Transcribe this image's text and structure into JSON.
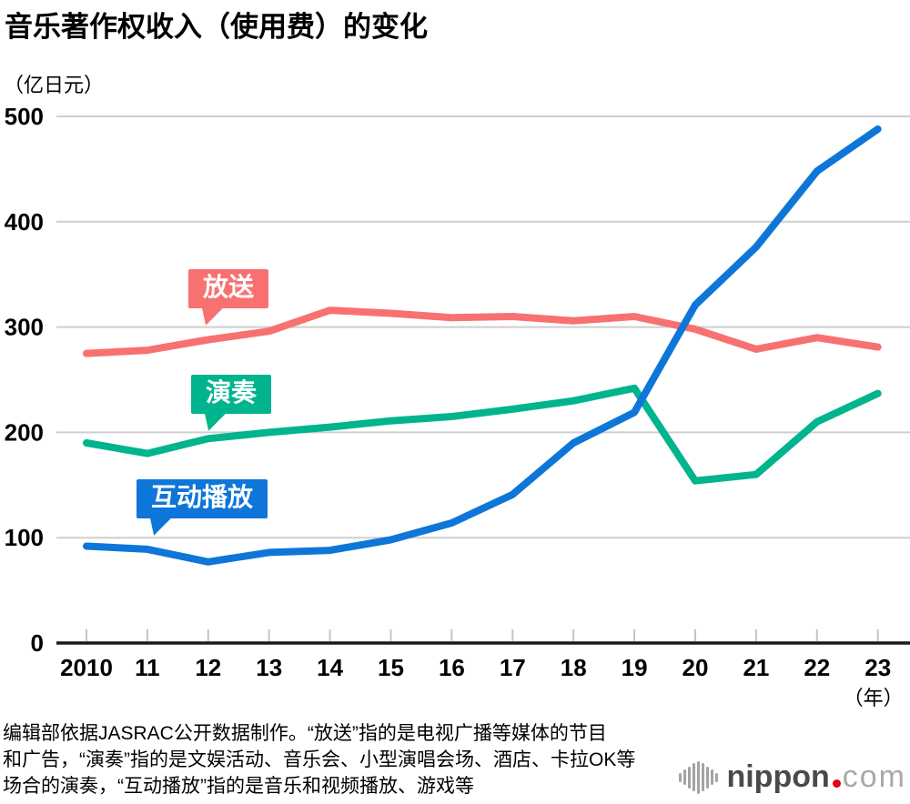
{
  "title": "音乐著作权收入（使用费）的变化",
  "unit_label": "（亿日元）",
  "chart_data": {
    "type": "line",
    "title": "音乐著作权收入（使用费）的变化",
    "ylabel": "（亿日元）",
    "x_suffix_label": "（年）",
    "ylim": [
      0,
      500
    ],
    "y_ticks": [
      0,
      100,
      200,
      300,
      400,
      500
    ],
    "grid": true,
    "legend_position": "callout-labels-on-lines",
    "categories": [
      "2010",
      "11",
      "12",
      "13",
      "14",
      "15",
      "16",
      "17",
      "18",
      "19",
      "20",
      "21",
      "22",
      "23"
    ],
    "series": [
      {
        "key": "broadcast",
        "name": "放送",
        "color": "#f87171",
        "values": [
          275,
          278,
          288,
          296,
          316,
          313,
          309,
          310,
          306,
          310,
          298,
          279,
          290,
          281
        ]
      },
      {
        "key": "performance",
        "name": "演奏",
        "color": "#00b48e",
        "values": [
          190,
          180,
          194,
          200,
          205,
          211,
          215,
          222,
          230,
          242,
          154,
          160,
          210,
          237
        ]
      },
      {
        "key": "interactive",
        "name": "互动播放",
        "color": "#0e76d8",
        "values": [
          92,
          89,
          77,
          86,
          88,
          98,
          114,
          141,
          190,
          219,
          321,
          376,
          448,
          488
        ]
      }
    ],
    "colors": {
      "gridline": "#cfcfcf",
      "axis": "#1a1a1a",
      "tick": "#c4c4c4",
      "label_text": "#000000"
    }
  },
  "footer": {
    "line1": "编辑部依据JASRAC公开数据制作。“放送”指的是电视广播等媒体的节目",
    "line2": "和广告，“演奏”指的是文娱活动、音乐会、小型演唱会场、酒店、卡拉OK等",
    "line3": "场合的演奏，“互动播放”指的是音乐和视频播放、游戏等"
  },
  "logo": {
    "brand": "nippon",
    "tld": "com",
    "dot_color": "#e60012"
  }
}
